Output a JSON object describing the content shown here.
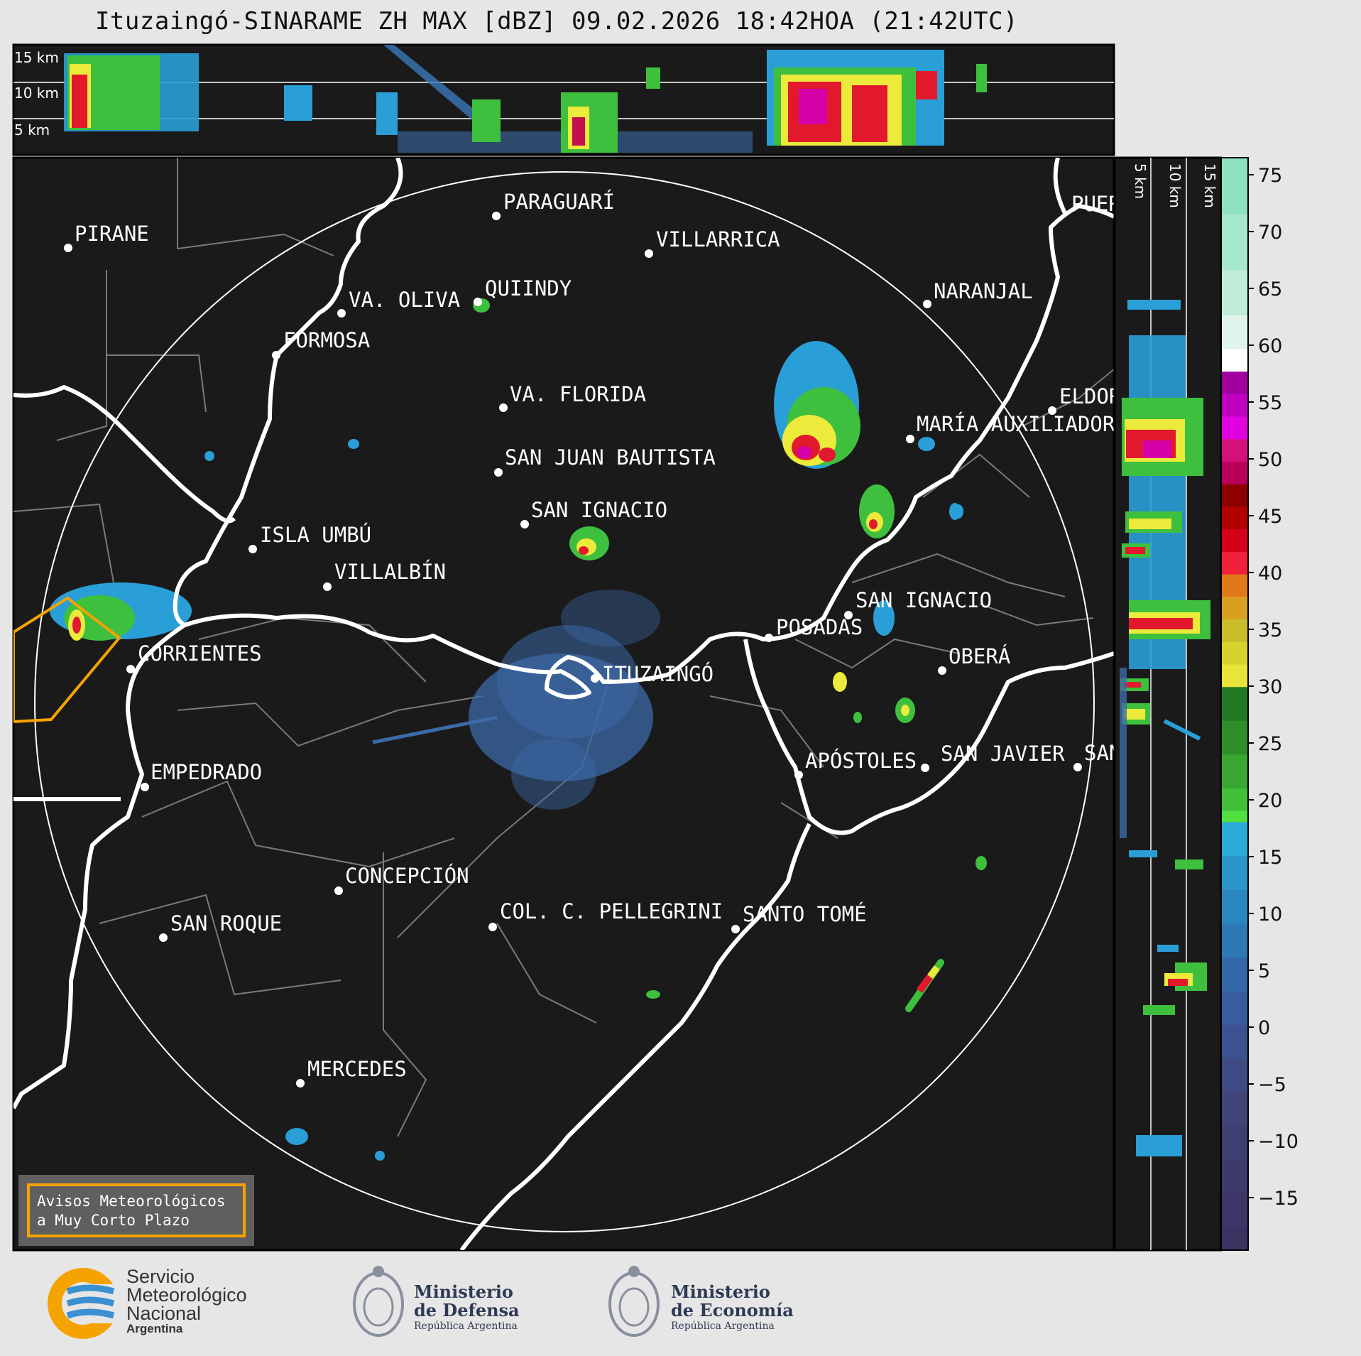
{
  "title": "Ituzaingó-SINARAME ZH MAX [dBZ] 09.02.2026 18:42HOA (21:42UTC)",
  "top_panel_altitudes": [
    "15 km",
    "10 km",
    "5 km"
  ],
  "side_panel_altitudes": [
    "5 km",
    "10 km",
    "15 km"
  ],
  "cities": [
    {
      "name": "PARAGUARÍ"
    },
    {
      "name": "VILLARRICA"
    },
    {
      "name": "PIRANE"
    },
    {
      "name": "NARANJAL"
    },
    {
      "name": "QUIINDY"
    },
    {
      "name": "VA. OLIVA"
    },
    {
      "name": "FORMOSA"
    },
    {
      "name": "VA. FLORIDA"
    },
    {
      "name": "ELDORADO"
    },
    {
      "name": "MARÍA AUXILIADORA"
    },
    {
      "name": "SAN JUAN BAUTISTA"
    },
    {
      "name": "SAN IGNACIO"
    },
    {
      "name": "ISLA UMBÚ"
    },
    {
      "name": "VILLALBÍN"
    },
    {
      "name": "SAN IGNACIO"
    },
    {
      "name": "POSADAS"
    },
    {
      "name": "CORRIENTES"
    },
    {
      "name": "ITUZAINGÓ"
    },
    {
      "name": "OBERÁ"
    },
    {
      "name": "APÓSTOLES"
    },
    {
      "name": "SAN JAVIER"
    },
    {
      "name": "SAN"
    },
    {
      "name": "EMPEDRADO"
    },
    {
      "name": "CONCEPCIÓN"
    },
    {
      "name": "COL. C. PELLEGRINI"
    },
    {
      "name": "SANTO TOMÉ"
    },
    {
      "name": "SAN ROQUE"
    },
    {
      "name": "MERCEDES"
    },
    {
      "name": "PUERTO"
    }
  ],
  "colorbar": {
    "unit": "dBZ",
    "ticks": [
      "75",
      "70",
      "65",
      "60",
      "55",
      "50",
      "45",
      "40",
      "35",
      "30",
      "25",
      "20",
      "15",
      "10",
      "5",
      "0",
      "−5",
      "−10",
      "−15"
    ],
    "min": -20,
    "max": 77
  },
  "warning_legend": {
    "line1": "Avisos Meteorológicos",
    "line2": "a Muy Corto Plazo",
    "color": "#f5a300"
  },
  "logos": {
    "smn": {
      "line1": "Servicio",
      "line2": "Meteorológico",
      "line3": "Nacional",
      "line4": "Argentina"
    },
    "defensa": {
      "line1": "Ministerio",
      "line2": "de Defensa",
      "line3": "República Argentina"
    },
    "economia": {
      "line1": "Ministerio",
      "line2": "de Economía",
      "line3": "República Argentina"
    }
  }
}
